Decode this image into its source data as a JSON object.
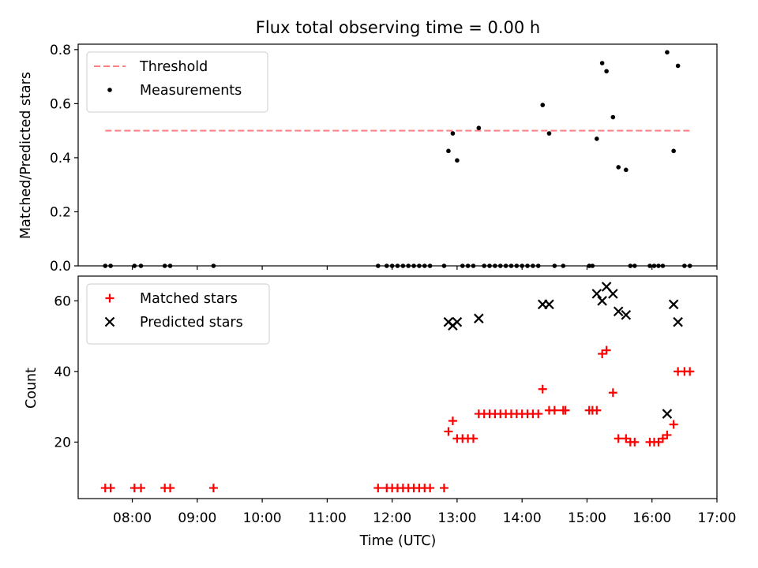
{
  "chart_data": [
    {
      "type": "scatter",
      "title": "Flux total observing time = 0.00 h",
      "xlabel": "",
      "ylabel": "Matched/Predicted stars",
      "ylim": [
        0,
        0.82
      ],
      "yticks": [
        0.0,
        0.2,
        0.4,
        0.6,
        0.8
      ],
      "ytick_labels": [
        "0.0",
        "0.2",
        "0.4",
        "0.6",
        "0.8"
      ],
      "xlim": [
        "07:10",
        "17:00"
      ],
      "grid": false,
      "legend": "upper left",
      "threshold": {
        "name": "Threshold",
        "color": "#ff8080",
        "value": 0.5,
        "x_start": "07:35",
        "x_end": "16:35"
      },
      "series": [
        {
          "name": "Measurements",
          "color": "#000000",
          "marker": "dot",
          "points": [
            [
              "07:35",
              0
            ],
            [
              "07:40",
              0
            ],
            [
              "08:02",
              0
            ],
            [
              "08:08",
              0
            ],
            [
              "08:30",
              0
            ],
            [
              "08:35",
              0
            ],
            [
              "09:15",
              0
            ],
            [
              "11:47",
              0
            ],
            [
              "11:55",
              0
            ],
            [
              "12:00",
              0
            ],
            [
              "12:05",
              0
            ],
            [
              "12:10",
              0
            ],
            [
              "12:15",
              0
            ],
            [
              "12:20",
              0
            ],
            [
              "12:25",
              0
            ],
            [
              "12:30",
              0
            ],
            [
              "12:35",
              0
            ],
            [
              "12:48",
              0
            ],
            [
              "12:52",
              0.425
            ],
            [
              "12:56",
              0.49
            ],
            [
              "13:00",
              0.39
            ],
            [
              "13:05",
              0
            ],
            [
              "13:10",
              0
            ],
            [
              "13:15",
              0
            ],
            [
              "13:20",
              0.51
            ],
            [
              "13:25",
              0
            ],
            [
              "13:30",
              0
            ],
            [
              "13:35",
              0
            ],
            [
              "13:40",
              0
            ],
            [
              "13:45",
              0
            ],
            [
              "13:50",
              0
            ],
            [
              "13:55",
              0
            ],
            [
              "14:00",
              0
            ],
            [
              "14:05",
              0
            ],
            [
              "14:10",
              0
            ],
            [
              "14:15",
              0
            ],
            [
              "14:19",
              0.595
            ],
            [
              "14:25",
              0.49
            ],
            [
              "14:30",
              0
            ],
            [
              "14:38",
              0
            ],
            [
              "15:02",
              0
            ],
            [
              "15:05",
              0
            ],
            [
              "15:09",
              0.47
            ],
            [
              "15:14",
              0.75
            ],
            [
              "15:18",
              0.72
            ],
            [
              "15:24",
              0.55
            ],
            [
              "15:29",
              0.365
            ],
            [
              "15:36",
              0.355
            ],
            [
              "15:40",
              0
            ],
            [
              "15:44",
              0
            ],
            [
              "15:58",
              0
            ],
            [
              "16:02",
              0
            ],
            [
              "16:06",
              0
            ],
            [
              "16:10",
              0
            ],
            [
              "16:14",
              0.79
            ],
            [
              "16:20",
              0.425
            ],
            [
              "16:24",
              0.74
            ],
            [
              "16:30",
              0
            ],
            [
              "16:35",
              0
            ]
          ]
        }
      ]
    },
    {
      "type": "scatter",
      "title": "",
      "xlabel": "Time (UTC)",
      "ylabel": "Count",
      "ylim": [
        4,
        67
      ],
      "yticks": [
        20,
        40,
        60
      ],
      "ytick_labels": [
        "20",
        "40",
        "60"
      ],
      "xlim": [
        "07:10",
        "17:00"
      ],
      "xticks": [
        "08:00",
        "09:00",
        "10:00",
        "11:00",
        "12:00",
        "13:00",
        "14:00",
        "15:00",
        "16:00",
        "17:00"
      ],
      "xtick_labels": [
        "08:00",
        "09:00",
        "10:00",
        "11:00",
        "12:00",
        "13:00",
        "14:00",
        "15:00",
        "16:00",
        "17:00"
      ],
      "grid": false,
      "legend": "upper left",
      "series": [
        {
          "name": "Matched stars",
          "color": "#ff0000",
          "marker": "plus",
          "points": [
            [
              "07:35",
              7
            ],
            [
              "07:40",
              7
            ],
            [
              "08:02",
              7
            ],
            [
              "08:08",
              7
            ],
            [
              "08:30",
              7
            ],
            [
              "08:35",
              7
            ],
            [
              "09:15",
              7
            ],
            [
              "11:47",
              7
            ],
            [
              "11:55",
              7
            ],
            [
              "12:00",
              7
            ],
            [
              "12:05",
              7
            ],
            [
              "12:10",
              7
            ],
            [
              "12:15",
              7
            ],
            [
              "12:20",
              7
            ],
            [
              "12:25",
              7
            ],
            [
              "12:30",
              7
            ],
            [
              "12:35",
              7
            ],
            [
              "12:48",
              7
            ],
            [
              "12:52",
              23
            ],
            [
              "12:56",
              26
            ],
            [
              "13:00",
              21
            ],
            [
              "13:05",
              21
            ],
            [
              "13:10",
              21
            ],
            [
              "13:15",
              21
            ],
            [
              "13:20",
              28
            ],
            [
              "13:25",
              28
            ],
            [
              "13:30",
              28
            ],
            [
              "13:35",
              28
            ],
            [
              "13:40",
              28
            ],
            [
              "13:45",
              28
            ],
            [
              "13:50",
              28
            ],
            [
              "13:55",
              28
            ],
            [
              "14:00",
              28
            ],
            [
              "14:05",
              28
            ],
            [
              "14:10",
              28
            ],
            [
              "14:15",
              28
            ],
            [
              "14:19",
              35
            ],
            [
              "14:25",
              29
            ],
            [
              "14:30",
              29
            ],
            [
              "14:38",
              29
            ],
            [
              "14:40",
              29
            ],
            [
              "15:02",
              29
            ],
            [
              "15:05",
              29
            ],
            [
              "15:09",
              29
            ],
            [
              "15:14",
              45
            ],
            [
              "15:18",
              46
            ],
            [
              "15:24",
              34
            ],
            [
              "15:29",
              21
            ],
            [
              "15:36",
              21
            ],
            [
              "15:40",
              20
            ],
            [
              "15:44",
              20
            ],
            [
              "15:58",
              20
            ],
            [
              "16:02",
              20
            ],
            [
              "16:06",
              20
            ],
            [
              "16:10",
              21
            ],
            [
              "16:14",
              22
            ],
            [
              "16:20",
              25
            ],
            [
              "16:24",
              40
            ],
            [
              "16:30",
              40
            ],
            [
              "16:35",
              40
            ]
          ]
        },
        {
          "name": "Predicted stars",
          "color": "#000000",
          "marker": "x",
          "points": [
            [
              "12:52",
              54
            ],
            [
              "12:56",
              53
            ],
            [
              "13:00",
              54
            ],
            [
              "13:20",
              55
            ],
            [
              "14:19",
              59
            ],
            [
              "14:25",
              59
            ],
            [
              "15:09",
              62
            ],
            [
              "15:14",
              60
            ],
            [
              "15:18",
              64
            ],
            [
              "15:24",
              62
            ],
            [
              "15:29",
              57
            ],
            [
              "15:36",
              56
            ],
            [
              "16:14",
              28
            ],
            [
              "16:20",
              59
            ],
            [
              "16:24",
              54
            ]
          ]
        }
      ]
    }
  ]
}
